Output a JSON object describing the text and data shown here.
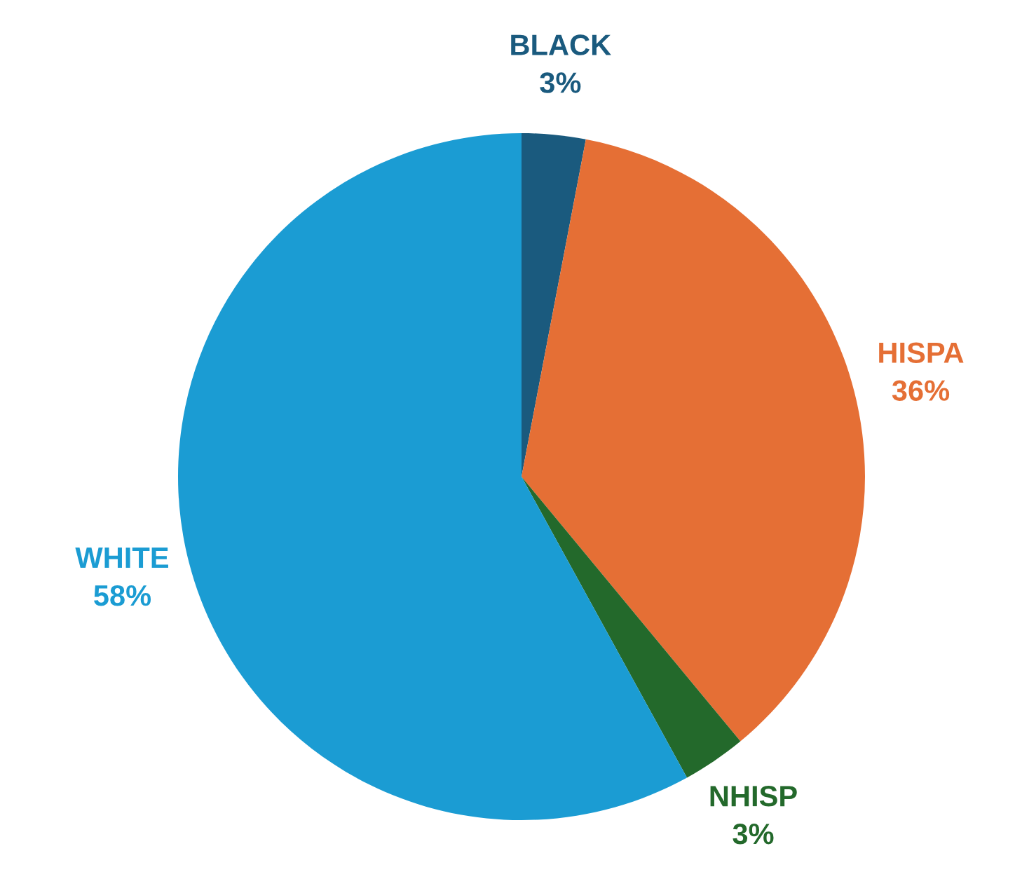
{
  "chart_data": {
    "type": "pie",
    "categories": [
      "BLACK",
      "HISPA",
      "NHISP",
      "WHITE"
    ],
    "values": [
      3,
      36,
      3,
      58
    ],
    "value_labels": [
      "3%",
      "36%",
      "3%",
      "58%"
    ],
    "colors": [
      "#1a5a7e",
      "#e56f35",
      "#23692b",
      "#1b9cd3"
    ]
  }
}
